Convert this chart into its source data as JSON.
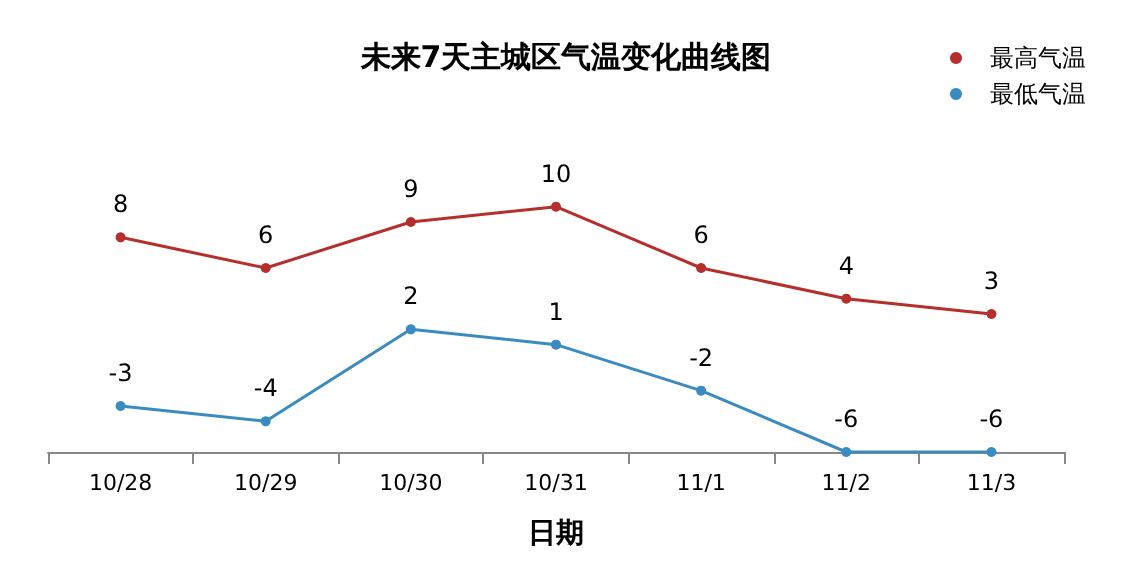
{
  "chart_data": {
    "type": "line",
    "title": "未来7天主城区气温变化曲线图",
    "xlabel": "日期",
    "categories": [
      "10/28",
      "10/29",
      "10/30",
      "10/31",
      "11/1",
      "11/2",
      "11/3"
    ],
    "series": [
      {
        "name": "最高气温",
        "color": "#b5302c",
        "values": [
          8,
          6,
          9,
          10,
          6,
          4,
          3
        ]
      },
      {
        "name": "最低气温",
        "color": "#3a8cc0",
        "values": [
          -3,
          -4,
          2,
          1,
          -2,
          -6,
          -6
        ]
      }
    ],
    "data_labels": true,
    "legend": "top right",
    "grid": false,
    "marker": "circle",
    "line_style": "solid",
    "tick_labels": "x"
  }
}
